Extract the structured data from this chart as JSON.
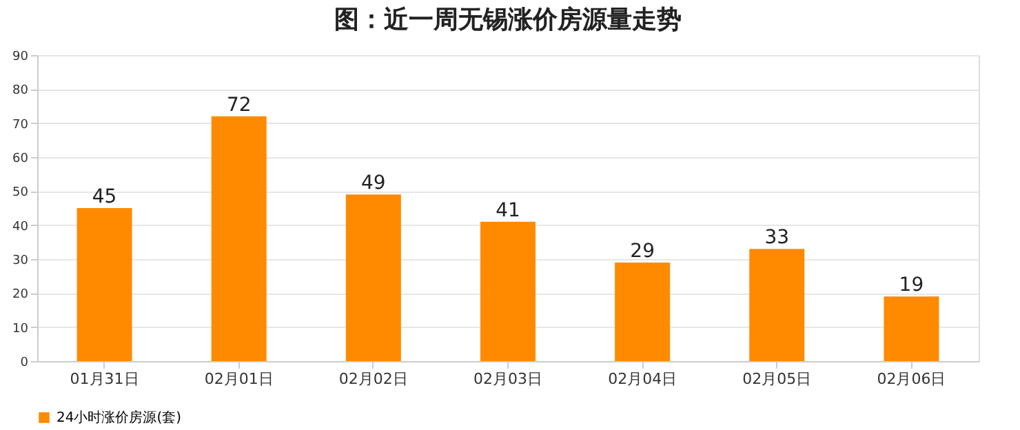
{
  "chart_data": {
    "type": "bar",
    "title": "图：近一周无锡涨价房源量走势",
    "categories": [
      "01月31日",
      "02月01日",
      "02月02日",
      "02月03日",
      "02月04日",
      "02月05日",
      "02月06日"
    ],
    "series": [
      {
        "name": "24小时涨价房源(套)",
        "color": "#ff8a00",
        "values": [
          45,
          72,
          49,
          41,
          29,
          33,
          19
        ]
      }
    ],
    "ylim": [
      0,
      90
    ],
    "yticks": [
      0,
      10,
      20,
      30,
      40,
      50,
      60,
      70,
      80,
      90
    ],
    "grid": "y",
    "legend": "bottom",
    "data_labels": true
  }
}
